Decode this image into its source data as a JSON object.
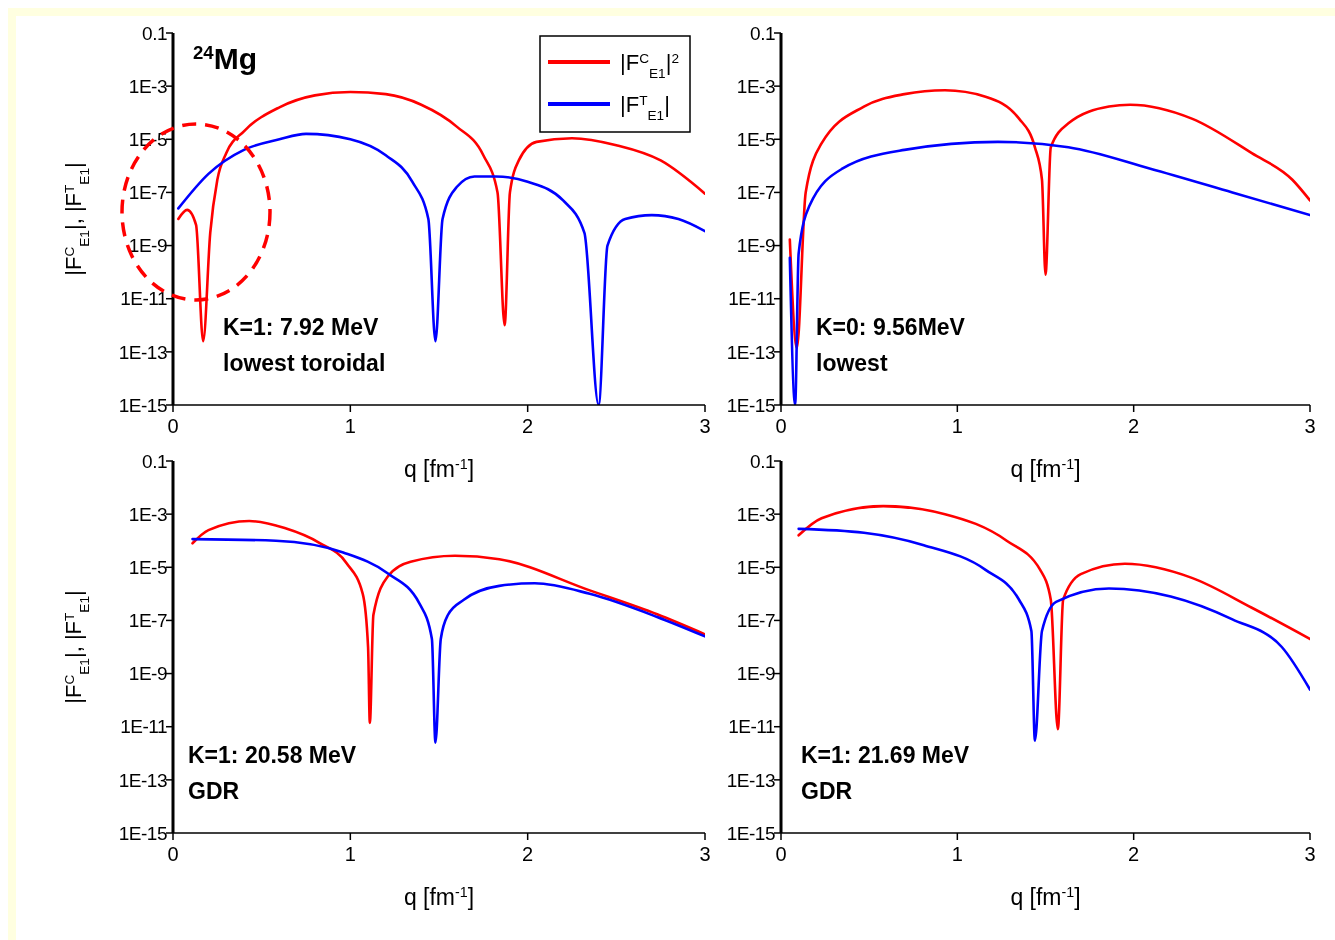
{
  "chart_data": [
    {
      "type": "line",
      "title": "$^{24}$Mg",
      "xlabel": "q [fm$^{-1}$]",
      "ylabel": "|F$^{C}$$_{E1}$|, |F$^{T}$$_{E1}$|",
      "log": "y",
      "legend": "top right",
      "xlim": [
        0,
        3
      ],
      "xticks": [
        0,
        1,
        2,
        3
      ],
      "ylim": [
        1e-15,
        0.1
      ],
      "yticks": [
        {
          "value": 0.1,
          "label": "0.1"
        },
        {
          "value": 0.001,
          "label": "1E-3"
        },
        {
          "value": 1e-05,
          "label": "1E-5"
        },
        {
          "value": 1e-07,
          "label": "1E-7"
        },
        {
          "value": 1e-09,
          "label": "1E-9"
        },
        {
          "value": 1e-11,
          "label": "1E-11"
        },
        {
          "value": 1e-13,
          "label": "1E-13"
        },
        {
          "value": 1e-15,
          "label": "1E-15"
        }
      ],
      "annotations": [
        "K=1: 7.92 MeV",
        "lowest toroidal"
      ],
      "series": [
        {
          "name": "|F$^{C}$$_{E1}$|$^{2}$",
          "color": "#ff0000",
          "x": [
            0.03,
            0.08,
            0.13,
            0.17,
            0.21,
            0.25,
            0.3,
            0.4,
            0.6,
            0.8,
            1.0,
            1.2,
            1.4,
            1.6,
            1.75,
            1.83,
            1.87,
            1.9,
            1.95,
            2.05,
            2.25,
            2.5,
            2.75,
            3.0
          ],
          "values": [
            1e-08,
            2.2e-08,
            6e-09,
            2.5e-13,
            3e-09,
            3e-07,
            3e-06,
            2e-05,
            0.00016,
            0.00045,
            0.0006,
            0.0005,
            0.0002,
            3e-05,
            2.5e-06,
            1e-07,
            1e-12,
            1e-07,
            1.6e-06,
            8e-06,
            1.1e-05,
            6e-06,
            1.6e-06,
            9e-08
          ]
        },
        {
          "name": "|F$^{T}$$_{E1}$|",
          "color": "#0000ff",
          "x": [
            0.03,
            0.2,
            0.4,
            0.6,
            0.75,
            1.0,
            1.2,
            1.35,
            1.44,
            1.48,
            1.52,
            1.6,
            1.7,
            1.82,
            2.0,
            2.2,
            2.32,
            2.4,
            2.45,
            2.55,
            2.7,
            2.85,
            3.0
          ],
          "values": [
            2.5e-08,
            5e-07,
            4e-06,
            1e-05,
            1.6e-05,
            1e-05,
            2.5e-06,
            2.5e-07,
            1e-08,
            2.5e-13,
            1e-08,
            1.6e-07,
            4e-07,
            4e-07,
            2.5e-07,
            5e-08,
            3e-09,
            1e-15,
            1e-09,
            1e-08,
            1.4e-08,
            1e-08,
            3.5e-09
          ]
        }
      ]
    },
    {
      "type": "line",
      "xlabel": "q [fm$^{-1}$]",
      "log": "y",
      "xlim": [
        0,
        3
      ],
      "xticks": [
        0,
        1,
        2,
        3
      ],
      "ylim": [
        1e-15,
        0.1
      ],
      "yticks": [
        {
          "value": 0.1,
          "label": "0.1"
        },
        {
          "value": 0.001,
          "label": "1E-3"
        },
        {
          "value": 1e-05,
          "label": "1E-5"
        },
        {
          "value": 1e-07,
          "label": "1E-7"
        },
        {
          "value": 1e-09,
          "label": "1E-9"
        },
        {
          "value": 1e-11,
          "label": "1E-11"
        },
        {
          "value": 1e-13,
          "label": "1E-13"
        },
        {
          "value": 1e-15,
          "label": "1E-15"
        }
      ],
      "annotations": [
        "K=0: 9.56MeV",
        "lowest"
      ],
      "series": [
        {
          "color": "#ff0000",
          "x": [
            0.05,
            0.09,
            0.14,
            0.23,
            0.47,
            0.7,
            0.93,
            1.16,
            1.35,
            1.44,
            1.48,
            1.5,
            1.53,
            1.63,
            1.86,
            1.98,
            2.33,
            2.67,
            2.9,
            3.0
          ],
          "values": [
            1.7e-09,
            1.4e-13,
            1e-07,
            7e-06,
            0.00017,
            0.0005,
            0.0007,
            0.0004,
            6e-05,
            5e-06,
            3e-07,
            8e-11,
            5e-06,
            4e-05,
            0.00017,
            0.0002,
            6e-05,
            3e-06,
            3e-07,
            5e-08
          ]
        },
        {
          "color": "#0000ff",
          "x": [
            0.05,
            0.08,
            0.1,
            0.16,
            0.35,
            0.7,
            1.23,
            1.63,
            2.09,
            2.56,
            3.0
          ],
          "values": [
            3.5e-10,
            1e-15,
            5e-10,
            3e-08,
            8e-07,
            4e-06,
            8e-06,
            5e-06,
            8e-07,
            1e-07,
            1.4e-08
          ]
        }
      ]
    },
    {
      "type": "line",
      "xlabel": "q [fm$^{-1}$]",
      "ylabel": "|F$^{C}$$_{E1}$|, |F$^{T}$$_{E1}$|",
      "log": "y",
      "xlim": [
        0,
        3
      ],
      "xticks": [
        0,
        1,
        2,
        3
      ],
      "ylim": [
        1e-15,
        0.1
      ],
      "yticks": [
        {
          "value": 0.1,
          "label": "0.1"
        },
        {
          "value": 0.001,
          "label": "1E-3"
        },
        {
          "value": 1e-05,
          "label": "1E-5"
        },
        {
          "value": 1e-07,
          "label": "1E-7"
        },
        {
          "value": 1e-09,
          "label": "1E-9"
        },
        {
          "value": 1e-11,
          "label": "1E-11"
        },
        {
          "value": 1e-13,
          "label": "1E-13"
        },
        {
          "value": 1e-15,
          "label": "1E-15"
        }
      ],
      "annotations": [
        "K=1: 20.58 MeV",
        "GDR"
      ],
      "series": [
        {
          "color": "#ff0000",
          "x": [
            0.11,
            0.2,
            0.43,
            0.63,
            0.83,
            0.98,
            1.07,
            1.1,
            1.11,
            1.13,
            1.21,
            1.34,
            1.59,
            1.84,
            2.35,
            2.73,
            3.0
          ],
          "values": [
            8e-05,
            0.00025,
            0.00055,
            0.0003,
            8e-05,
            1.4e-05,
            1e-06,
            1e-08,
            1.4e-11,
            1.6e-07,
            4.4e-06,
            1.6e-05,
            2.7e-05,
            2e-05,
            1.35e-06,
            1.7e-07,
            3e-08
          ]
        },
        {
          "color": "#0000ff",
          "x": [
            0.11,
            0.58,
            0.96,
            1.21,
            1.39,
            1.46,
            1.48,
            1.51,
            1.55,
            1.64,
            1.84,
            2.04,
            2.35,
            2.73,
            3.0
          ],
          "values": [
            0.000115,
            0.0001,
            3.6e-05,
            6e-06,
            4.3e-07,
            2e-08,
            2.5e-12,
            2e-08,
            1.6e-07,
            6e-07,
            2e-06,
            2.5e-06,
            1e-06,
            1.35e-07,
            2.5e-08
          ]
        }
      ]
    },
    {
      "type": "line",
      "xlabel": "q [fm$^{-1}$]",
      "log": "y",
      "xlim": [
        0,
        3
      ],
      "xticks": [
        0,
        1,
        2,
        3
      ],
      "ylim": [
        1e-15,
        0.1
      ],
      "yticks": [
        {
          "value": 0.1,
          "label": "0.1"
        },
        {
          "value": 0.001,
          "label": "1E-3"
        },
        {
          "value": 1e-05,
          "label": "1E-5"
        },
        {
          "value": 1e-07,
          "label": "1E-7"
        },
        {
          "value": 1e-09,
          "label": "1E-9"
        },
        {
          "value": 1e-11,
          "label": "1E-11"
        },
        {
          "value": 1e-13,
          "label": "1E-13"
        },
        {
          "value": 1e-15,
          "label": "1E-15"
        }
      ],
      "annotations": [
        "K=1: 21.69 MeV",
        "GDR"
      ],
      "series": [
        {
          "color": "#ff0000",
          "x": [
            0.1,
            0.23,
            0.58,
            0.93,
            1.28,
            1.47,
            1.53,
            1.57,
            1.6,
            1.7,
            1.95,
            2.33,
            2.67,
            3.0
          ],
          "values": [
            0.00016,
            0.0007,
            0.002,
            0.001,
            0.0001,
            8e-06,
            6e-07,
            8e-12,
            6e-07,
            5.5e-06,
            1.35e-05,
            4e-06,
            3e-07,
            2e-08
          ]
        },
        {
          "color": "#0000ff",
          "x": [
            0.1,
            0.47,
            0.81,
            1.16,
            1.35,
            1.42,
            1.44,
            1.48,
            1.56,
            1.86,
            2.21,
            2.56,
            2.84,
            3.0
          ],
          "values": [
            0.00028,
            0.0002,
            6.8e-05,
            8e-06,
            6e-07,
            4e-08,
            3e-12,
            4e-08,
            5e-07,
            1.6e-06,
            8e-07,
            1.1e-07,
            1e-08,
            2.5e-10
          ]
        }
      ]
    }
  ]
}
